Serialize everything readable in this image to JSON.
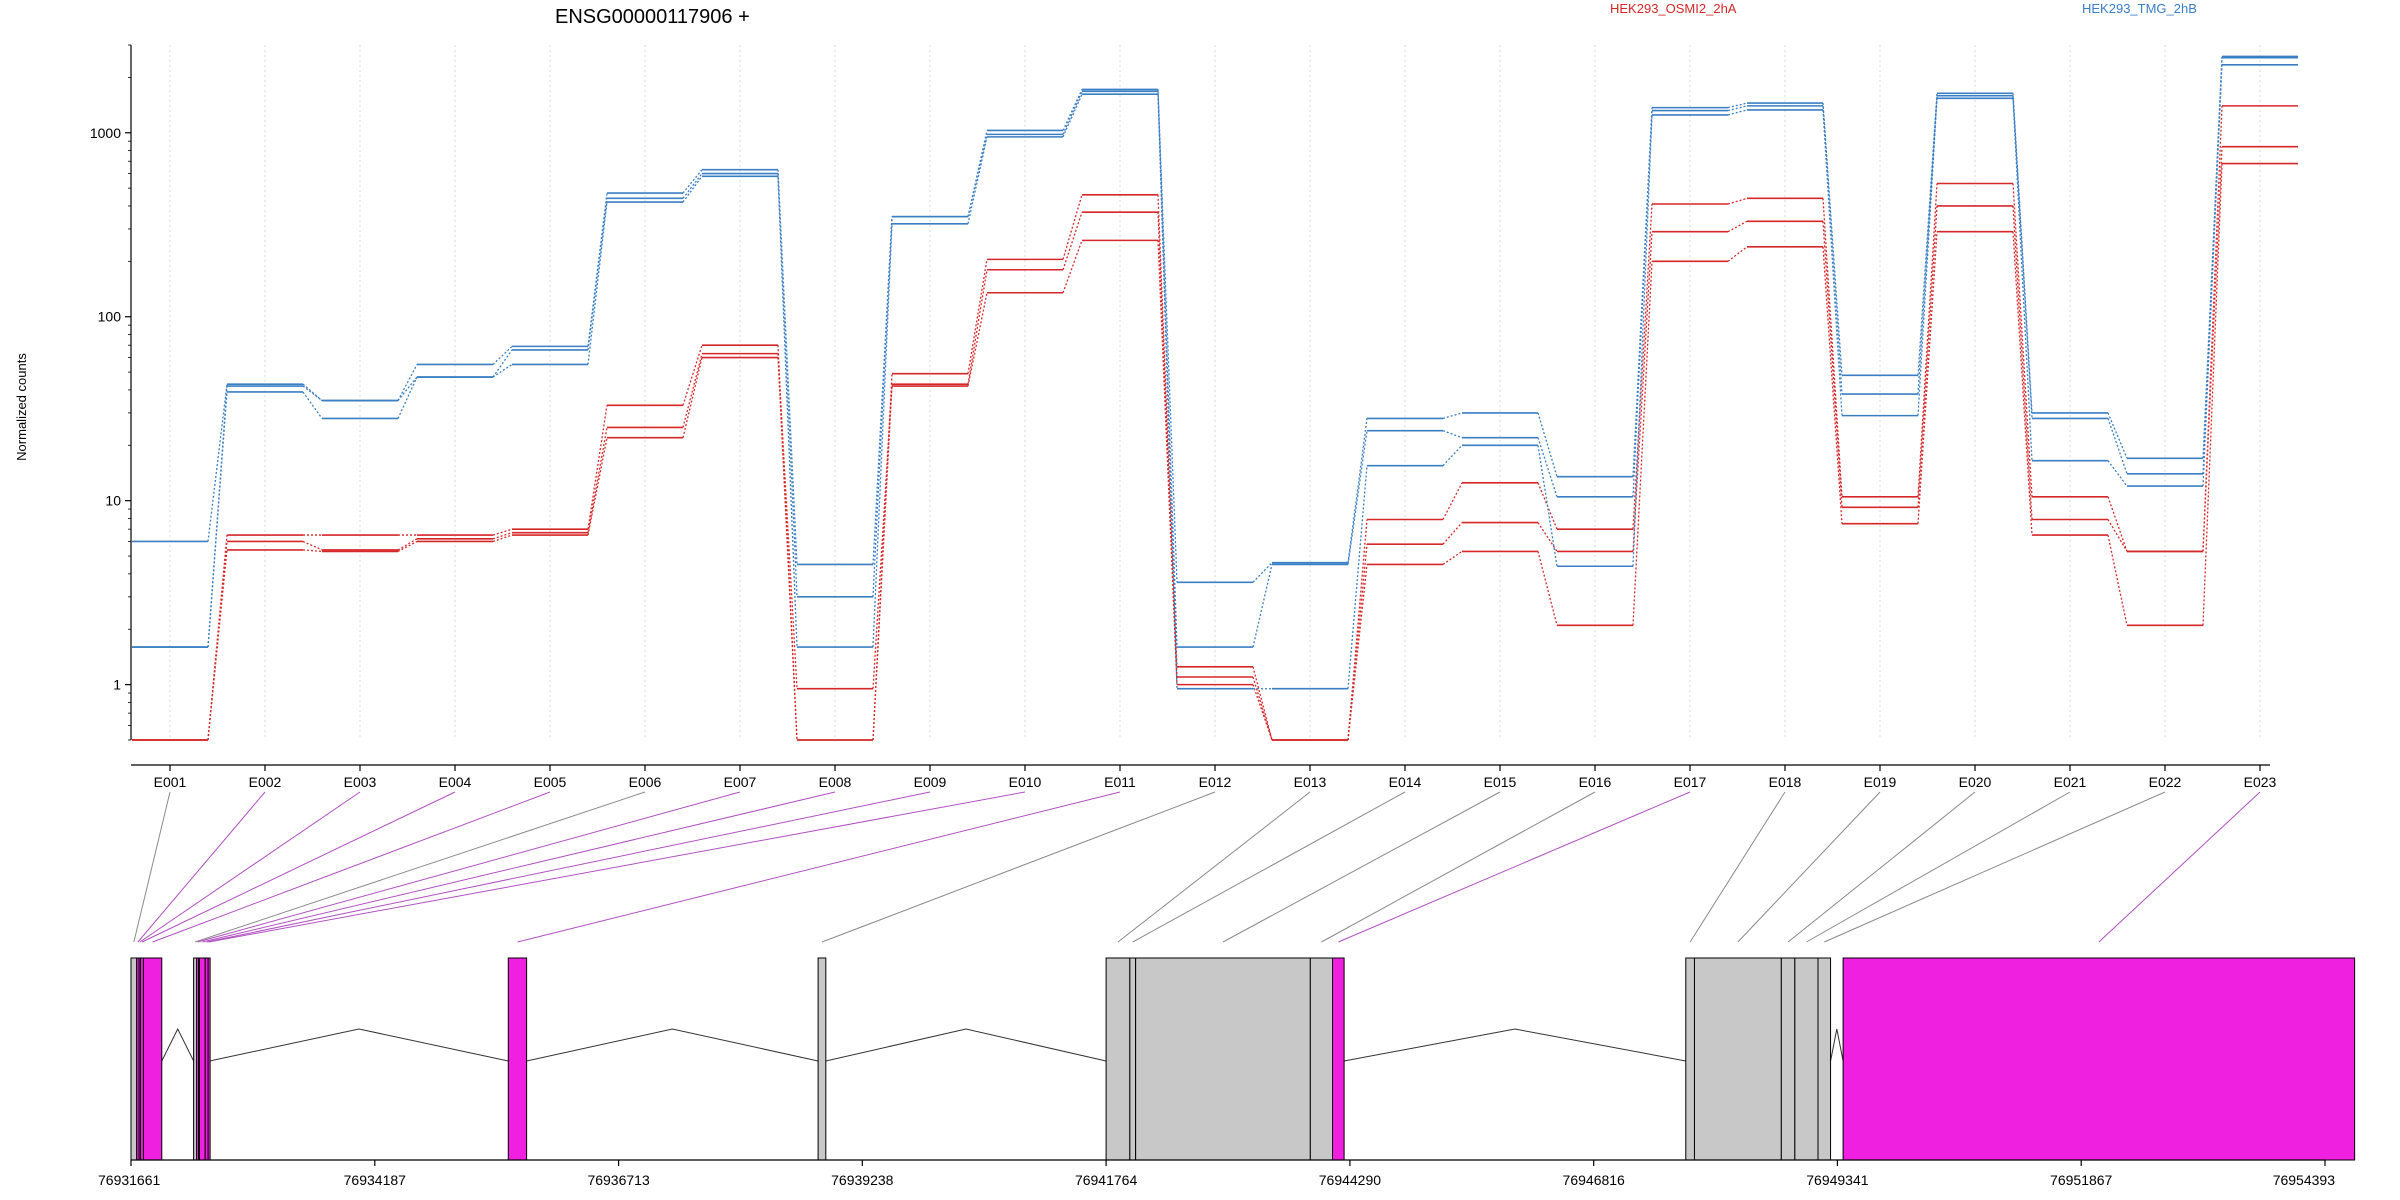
{
  "chart_data": [
    {
      "type": "line",
      "title": "ENSG00000117906 +",
      "ylabel": "Normalized counts",
      "xlabel": "",
      "yscale": "log",
      "ylim": [
        0.5,
        3000
      ],
      "yticks": [
        1,
        10,
        100,
        1000
      ],
      "ytick_labels": [
        "1",
        "10",
        "100",
        "1000"
      ],
      "grid": "vertical dotted",
      "legend_placement": "top",
      "categories": [
        "E001",
        "E002",
        "E003",
        "E004",
        "E005",
        "E006",
        "E007",
        "E008",
        "E009",
        "E010",
        "E011",
        "E012",
        "E013",
        "E014",
        "E015",
        "E016",
        "E017",
        "E018",
        "E019",
        "E020",
        "E021",
        "E022",
        "E023"
      ],
      "conditions": [
        {
          "name": "HEK293_OSMI2_2hA",
          "color": "#d62728"
        },
        {
          "name": "HEK293_TMG_2hB",
          "color": "#3a7ec4"
        }
      ],
      "series": [
        {
          "condition": "HEK293_OSMI2_2hA",
          "values": [
            0.5,
            6.5,
            6.5,
            6.5,
            7.0,
            33,
            70,
            0.5,
            49,
            205,
            460,
            1.25,
            0.5,
            7.9,
            12.5,
            7.0,
            410,
            440,
            10.5,
            530,
            10.5,
            5.3,
            1400
          ]
        },
        {
          "condition": "HEK293_OSMI2_2hA",
          "values": [
            0.5,
            6.0,
            5.4,
            6.2,
            6.7,
            25,
            63,
            0.95,
            43,
            180,
            370,
            1.1,
            0.5,
            5.8,
            7.6,
            5.3,
            290,
            330,
            9.2,
            400,
            7.9,
            5.3,
            840
          ]
        },
        {
          "condition": "HEK293_OSMI2_2hA",
          "values": [
            0.5,
            5.4,
            5.3,
            6.0,
            6.5,
            22,
            60,
            0.5,
            42,
            135,
            260,
            1.0,
            0.5,
            4.5,
            5.3,
            2.1,
            200,
            240,
            7.5,
            290,
            6.5,
            2.1,
            680
          ]
        },
        {
          "condition": "HEK293_TMG_2hB",
          "values": [
            6.0,
            43,
            35,
            55,
            69,
            470,
            630,
            4.5,
            350,
            1030,
            1720,
            3.6,
            4.6,
            28,
            30,
            13.5,
            1370,
            1450,
            48,
            1640,
            30,
            17,
            2600
          ]
        },
        {
          "condition": "HEK293_TMG_2hB",
          "values": [
            1.6,
            42,
            35,
            47,
            66,
            440,
            600,
            3.0,
            350,
            980,
            1680,
            1.6,
            4.5,
            24,
            22,
            10.5,
            1320,
            1400,
            38,
            1590,
            28,
            14,
            2560
          ]
        },
        {
          "condition": "HEK293_TMG_2hB",
          "values": [
            1.6,
            39,
            28,
            47,
            55,
            420,
            580,
            1.6,
            320,
            950,
            1620,
            0.95,
            0.95,
            15.5,
            20,
            4.4,
            1250,
            1330,
            29,
            1540,
            16.5,
            12,
            2340
          ]
        }
      ]
    },
    {
      "type": "gene-model",
      "xlim": [
        76931661,
        76954393
      ],
      "xticks": [
        76931661,
        76934187,
        76936713,
        76939238,
        76941764,
        76944290,
        76946816,
        76949341,
        76951867,
        76954393
      ],
      "xtick_labels": [
        "76931661",
        "76934187",
        "76936713",
        "76939238",
        "76941764",
        "76944290",
        "76946816",
        "76949341",
        "76951867",
        "76954393"
      ],
      "colors": {
        "significant": "#f020e0",
        "not_significant": "#c8c8c8",
        "connector_sig": "#b050c0",
        "connector_ns": "#8a8a8a"
      },
      "exon_bins": [
        {
          "id": "E001",
          "start": 76931661,
          "end": 76931720,
          "significant": false
        },
        {
          "id": "E002",
          "start": 76931720,
          "end": 76931745,
          "significant": true
        },
        {
          "id": "E003",
          "start": 76931745,
          "end": 76931760,
          "significant": true
        },
        {
          "id": "E004",
          "start": 76931760,
          "end": 76931790,
          "significant": true
        },
        {
          "id": "E005",
          "start": 76931790,
          "end": 76931980,
          "significant": true
        },
        {
          "id": "E006",
          "start": 76932310,
          "end": 76932340,
          "significant": false
        },
        {
          "id": "E007",
          "start": 76932340,
          "end": 76932360,
          "significant": true
        },
        {
          "id": "E008",
          "start": 76932370,
          "end": 76932430,
          "significant": true
        },
        {
          "id": "E009",
          "start": 76932430,
          "end": 76932460,
          "significant": true
        },
        {
          "id": "E010",
          "start": 76932460,
          "end": 76932475,
          "significant": true
        },
        {
          "id": "E011",
          "start": 76935570,
          "end": 76935760,
          "significant": true
        },
        {
          "id": "E012",
          "start": 76938780,
          "end": 76938860,
          "significant": false
        },
        {
          "id": "E013",
          "start": 76941764,
          "end": 76942010,
          "significant": false
        },
        {
          "id": "E014",
          "start": 76942010,
          "end": 76942070,
          "significant": false
        },
        {
          "id": "E015",
          "start": 76942070,
          "end": 76943880,
          "significant": false
        },
        {
          "id": "E016",
          "start": 76943880,
          "end": 76944110,
          "significant": false
        },
        {
          "id": "E017",
          "start": 76944110,
          "end": 76944230,
          "significant": true
        },
        {
          "id": "E018",
          "start": 76947770,
          "end": 76947860,
          "significant": false
        },
        {
          "id": "E019",
          "start": 76947860,
          "end": 76948760,
          "significant": false
        },
        {
          "id": "E020",
          "start": 76948760,
          "end": 76948900,
          "significant": false
        },
        {
          "id": "E021",
          "start": 76948900,
          "end": 76949140,
          "significant": false
        },
        {
          "id": "E022",
          "start": 76949140,
          "end": 76949270,
          "significant": false
        },
        {
          "id": "E023",
          "start": 76949400,
          "end": 76954700,
          "significant": true
        }
      ]
    }
  ]
}
